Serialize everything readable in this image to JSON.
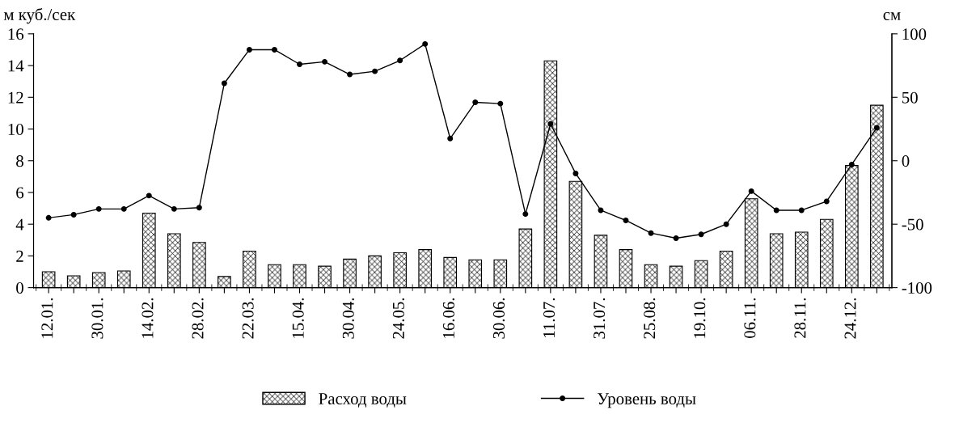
{
  "chart_data": {
    "type": "bar",
    "ylabel": "м куб./сек",
    "y2label": "см",
    "categories": [
      "12.01.",
      null,
      "30.01.",
      null,
      "14.02.",
      null,
      "28.02.",
      null,
      "22.03.",
      null,
      "15.04.",
      null,
      "30.04.",
      null,
      "24.05.",
      null,
      "16.06.",
      null,
      "30.06.",
      null,
      "11.07.",
      null,
      "31.07.",
      null,
      "25.08.",
      null,
      "19.10.",
      null,
      "06.11.",
      null,
      "28.11.",
      null,
      "24.12.",
      null
    ],
    "series": [
      {
        "name": "Расход воды",
        "color": "#000000",
        "values": [
          1.0,
          0.75,
          0.95,
          1.05,
          4.7,
          3.4,
          2.85,
          0.7,
          2.3,
          1.45,
          1.45,
          1.35,
          1.8,
          2.0,
          2.2,
          2.4,
          1.9,
          1.75,
          1.75,
          3.7,
          14.3,
          6.7,
          3.3,
          2.4,
          1.45,
          1.35,
          1.7,
          2.3,
          5.6,
          3.4,
          3.5,
          4.3,
          7.7,
          11.5
        ]
      },
      {
        "name": "Уровень воды",
        "type": "line",
        "axis": "y2",
        "color": "#000000",
        "marker": "circle",
        "values": [
          -45,
          -42.5,
          -38,
          -38,
          -27.5,
          -38,
          -37,
          61,
          87.5,
          87.5,
          76,
          78,
          68,
          70.5,
          79,
          92,
          17.5,
          46,
          45,
          -42,
          29,
          -10,
          -39,
          -47,
          -57,
          -61,
          -58,
          -50,
          -24,
          -39,
          -39,
          -32,
          -3,
          26
        ]
      }
    ],
    "ylim": [
      0,
      16
    ],
    "yticks": [
      0,
      2,
      4,
      6,
      8,
      10,
      12,
      14,
      16
    ],
    "y2lim": [
      -100,
      100
    ],
    "y2ticks": [
      -100,
      -50,
      0,
      50,
      100
    ],
    "grid": false,
    "legend": "bottom"
  }
}
